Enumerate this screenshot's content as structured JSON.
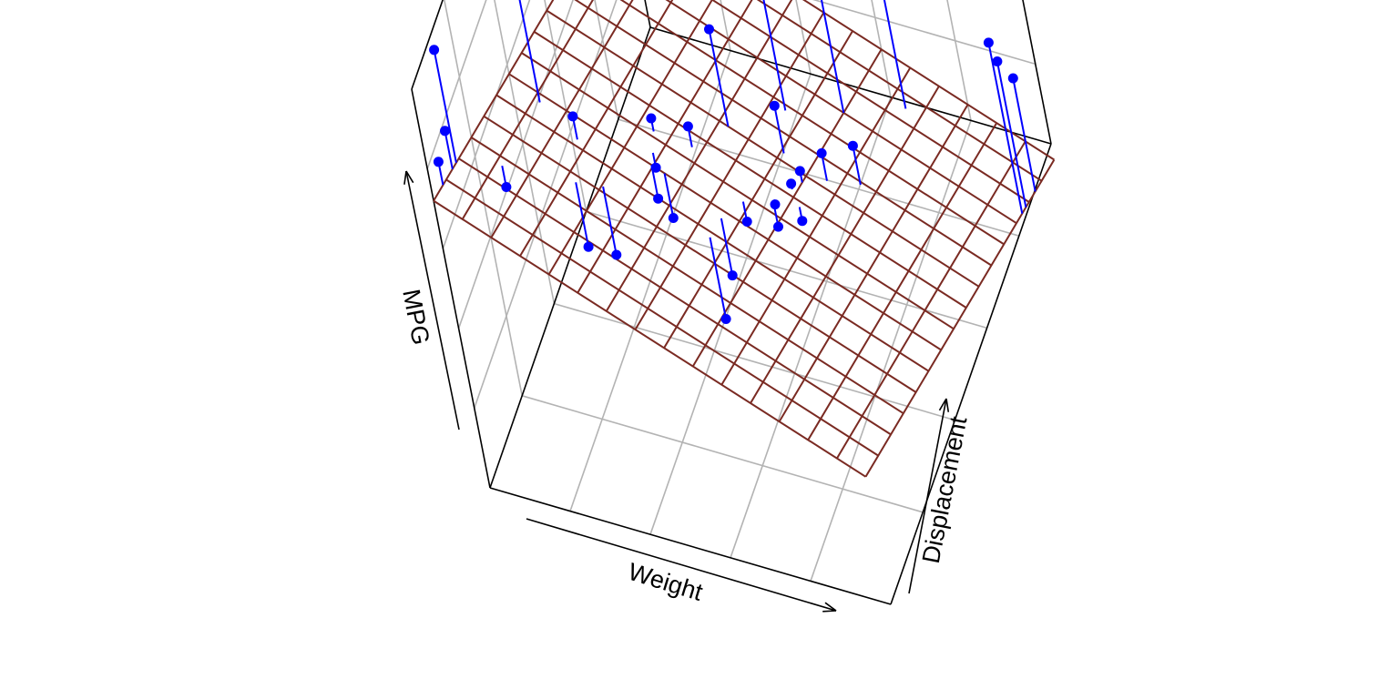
{
  "chart_data": {
    "type": "scatter",
    "subtype": "3d-scatter-with-regression-plane",
    "title": "",
    "xlabel": "Weight",
    "ylabel": "Displacement",
    "zlabel": "MPG",
    "xlim": [
      0,
      1
    ],
    "ylim": [
      0,
      1
    ],
    "zlim": [
      0,
      1
    ],
    "grid": true,
    "colors": {
      "points": "#0000ff",
      "drop_lines": "#0000ff",
      "surface": "#7a2a22",
      "grid": "#b3b3b3",
      "box": "#000000"
    },
    "plane": {
      "intercept": 0.72,
      "slope_weight": -0.4,
      "slope_displacement": -0.36,
      "grid_steps": 15
    },
    "points": [
      {
        "x": 0.0,
        "y": 0.12,
        "z": 0.96
      },
      {
        "x": 0.0,
        "y": 0.1,
        "z": 0.78
      },
      {
        "x": 0.0,
        "y": 0.05,
        "z": 0.76
      },
      {
        "x": 0.08,
        "y": 0.18,
        "z": 0.57
      },
      {
        "x": 0.08,
        "y": 0.38,
        "z": 0.94
      },
      {
        "x": 0.18,
        "y": 0.35,
        "z": 0.58
      },
      {
        "x": 0.22,
        "y": 0.25,
        "z": 0.38
      },
      {
        "x": 0.27,
        "y": 0.28,
        "z": 0.34
      },
      {
        "x": 0.3,
        "y": 0.48,
        "z": 0.46
      },
      {
        "x": 0.32,
        "y": 0.43,
        "z": 0.4
      },
      {
        "x": 0.33,
        "y": 0.4,
        "z": 0.36
      },
      {
        "x": 0.38,
        "y": 0.5,
        "z": 0.44
      },
      {
        "x": 0.36,
        "y": 0.4,
        "z": 0.32
      },
      {
        "x": 0.42,
        "y": 0.6,
        "z": 0.58
      },
      {
        "x": 0.5,
        "y": 0.38,
        "z": 0.24
      },
      {
        "x": 0.5,
        "y": 0.32,
        "z": 0.2
      },
      {
        "x": 0.5,
        "y": 0.72,
        "z": 0.66
      },
      {
        "x": 0.52,
        "y": 0.45,
        "z": 0.3
      },
      {
        "x": 0.54,
        "y": 0.62,
        "z": 0.4
      },
      {
        "x": 0.57,
        "y": 0.5,
        "z": 0.3
      },
      {
        "x": 0.58,
        "y": 0.48,
        "z": 0.27
      },
      {
        "x": 0.59,
        "y": 0.55,
        "z": 0.3
      },
      {
        "x": 0.6,
        "y": 0.8,
        "z": 0.62
      },
      {
        "x": 0.6,
        "y": 0.58,
        "z": 0.3
      },
      {
        "x": 0.62,
        "y": 0.52,
        "z": 0.25
      },
      {
        "x": 0.64,
        "y": 0.62,
        "z": 0.31
      },
      {
        "x": 0.7,
        "y": 0.66,
        "z": 0.3
      },
      {
        "x": 0.7,
        "y": 0.9,
        "z": 0.6
      },
      {
        "x": 1.0,
        "y": 0.9,
        "z": 0.28
      },
      {
        "x": 1.0,
        "y": 0.85,
        "z": 0.38
      },
      {
        "x": 1.0,
        "y": 0.83,
        "z": 0.45
      }
    ]
  }
}
